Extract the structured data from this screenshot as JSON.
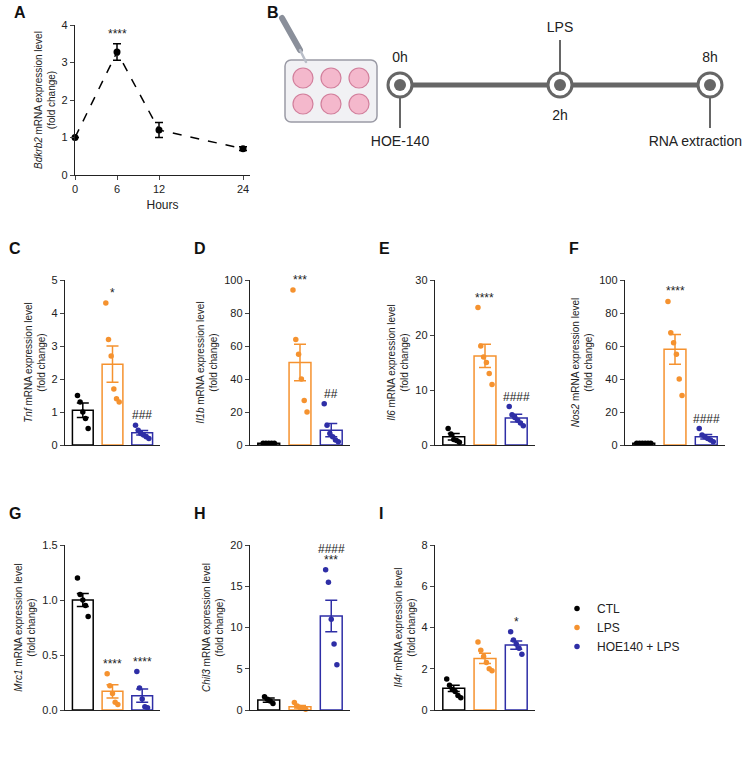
{
  "chart_data": [
    {
      "panel": "A",
      "type": "line",
      "xlabel": "Hours",
      "ylabel": "Bdkrb2 mRNA expression level (fold change)",
      "x": [
        0,
        6,
        12,
        24
      ],
      "values": [
        1,
        3.28,
        1.2,
        0.7
      ],
      "error": [
        0,
        0.22,
        0.2,
        0.05
      ],
      "color": "#000000",
      "line_style": "dash",
      "marker": "circle",
      "xlim": [
        0,
        25
      ],
      "xticks": [
        0,
        6,
        12,
        24
      ],
      "ylim": [
        0,
        4
      ],
      "yticks": [
        0,
        1,
        2,
        3,
        4
      ],
      "grid": false,
      "annotations": [
        {
          "x": 6,
          "text": "****"
        }
      ]
    },
    {
      "panel": "C",
      "type": "bar",
      "ylabel": "Tnf mRNA expression level (fold change)",
      "ylim": [
        0,
        5
      ],
      "yticks": [
        0,
        1,
        2,
        3,
        4,
        5
      ],
      "grid": false,
      "tick_labels": "y",
      "series": [
        {
          "name": "CTL",
          "color": "#000000",
          "values": [
            1.05
          ],
          "error": [
            0.22
          ],
          "points": [
            1.5,
            1.3,
            1.0,
            0.8,
            0.5
          ]
        },
        {
          "name": "LPS",
          "color": "#F5922F",
          "values": [
            2.45
          ],
          "error": [
            0.55
          ],
          "points": [
            4.3,
            3.2,
            2.7,
            1.7,
            1.4,
            1.3
          ]
        },
        {
          "name": "HOE140 + LPS",
          "color": "#2E2EA6",
          "values": [
            0.37
          ],
          "error": [
            0.07
          ],
          "points": [
            0.6,
            0.45,
            0.35,
            0.3,
            0.25,
            0.2
          ]
        }
      ],
      "annotations": [
        {
          "series": "LPS",
          "text": "*"
        },
        {
          "series": "HOE140 + LPS",
          "text": "###"
        }
      ]
    },
    {
      "panel": "D",
      "type": "bar",
      "ylabel": "Il1b mRNA expression level (fold change)",
      "ylim": [
        0,
        100
      ],
      "yticks": [
        0,
        20,
        40,
        60,
        80,
        100
      ],
      "grid": false,
      "tick_labels": "y",
      "series": [
        {
          "name": "CTL",
          "color": "#000000",
          "values": [
            1
          ],
          "error": [
            0.2
          ],
          "points": [
            1,
            1,
            1,
            1,
            1
          ]
        },
        {
          "name": "LPS",
          "color": "#F5922F",
          "values": [
            50
          ],
          "error": [
            11
          ],
          "points": [
            94,
            64,
            55,
            40,
            27,
            20
          ]
        },
        {
          "name": "HOE140 + LPS",
          "color": "#2E2EA6",
          "values": [
            9
          ],
          "error": [
            4
          ],
          "points": [
            25,
            12,
            7,
            5,
            3,
            2
          ]
        }
      ],
      "annotations": [
        {
          "series": "LPS",
          "text": "***"
        },
        {
          "series": "HOE140 + LPS",
          "text": "##"
        }
      ]
    },
    {
      "panel": "E",
      "type": "bar",
      "ylabel": "Il6 mRNA expression level (fold change)",
      "ylim": [
        0,
        30
      ],
      "yticks": [
        0,
        10,
        20,
        30
      ],
      "grid": false,
      "tick_labels": "y",
      "series": [
        {
          "name": "CTL",
          "color": "#000000",
          "values": [
            1.5
          ],
          "error": [
            0.6
          ],
          "points": [
            3,
            2,
            1,
            0.8,
            0.5
          ]
        },
        {
          "name": "LPS",
          "color": "#F5922F",
          "values": [
            16.2
          ],
          "error": [
            2.1
          ],
          "points": [
            25,
            18,
            16,
            15,
            13,
            11
          ]
        },
        {
          "name": "HOE140 + LPS",
          "color": "#2E2EA6",
          "values": [
            4.9
          ],
          "error": [
            0.7
          ],
          "points": [
            7,
            5.5,
            5,
            4.5,
            4,
            3.5
          ]
        }
      ],
      "annotations": [
        {
          "series": "LPS",
          "text": "****"
        },
        {
          "series": "HOE140 + LPS",
          "text": "####"
        }
      ]
    },
    {
      "panel": "F",
      "type": "bar",
      "ylabel": "Nos2 mRNA expression level (fold change)",
      "ylim": [
        0,
        100
      ],
      "yticks": [
        0,
        20,
        40,
        60,
        80,
        100
      ],
      "grid": false,
      "tick_labels": "y",
      "series": [
        {
          "name": "CTL",
          "color": "#000000",
          "values": [
            1
          ],
          "error": [
            0.2
          ],
          "points": [
            1,
            1,
            1,
            1,
            1,
            1
          ]
        },
        {
          "name": "LPS",
          "color": "#F5922F",
          "values": [
            58
          ],
          "error": [
            9
          ],
          "points": [
            87,
            68,
            62,
            55,
            40,
            30
          ]
        },
        {
          "name": "HOE140 + LPS",
          "color": "#2E2EA6",
          "values": [
            5
          ],
          "error": [
            1.3
          ],
          "points": [
            10,
            6,
            5,
            4,
            3,
            2
          ]
        }
      ],
      "annotations": [
        {
          "series": "LPS",
          "text": "****"
        },
        {
          "series": "HOE140 + LPS",
          "text": "####"
        }
      ]
    },
    {
      "panel": "G",
      "type": "bar",
      "ylabel": "Mrc1 mRNA expression level (fold change)",
      "ylim": [
        0,
        1.5
      ],
      "yticks": [
        {
          "value": 0,
          "label": "0.0"
        },
        0.5,
        {
          "value": 1,
          "label": "1.0"
        },
        1.5
      ],
      "grid": false,
      "tick_labels": "y",
      "series": [
        {
          "name": "CTL",
          "color": "#000000",
          "values": [
            1.0
          ],
          "error": [
            0.06
          ],
          "points": [
            1.2,
            1.05,
            1.0,
            0.95,
            0.85
          ]
        },
        {
          "name": "LPS",
          "color": "#F5922F",
          "values": [
            0.17
          ],
          "error": [
            0.06
          ],
          "points": [
            0.33,
            0.22,
            0.15,
            0.07,
            0.05
          ]
        },
        {
          "name": "HOE140 + LPS",
          "color": "#2E2EA6",
          "values": [
            0.13
          ],
          "error": [
            0.06
          ],
          "points": [
            0.35,
            0.2,
            0.1,
            0.03,
            0.02
          ]
        }
      ],
      "annotations": [
        {
          "series": "LPS",
          "text": "****"
        },
        {
          "series": "HOE140 + LPS",
          "text": "****"
        }
      ]
    },
    {
      "panel": "H",
      "type": "bar",
      "ylabel": "Chil3 mRNA expression level (fold change)",
      "ylim": [
        0,
        20
      ],
      "yticks": [
        0,
        5,
        10,
        15,
        20
      ],
      "grid": false,
      "tick_labels": "y",
      "series": [
        {
          "name": "CTL",
          "color": "#000000",
          "values": [
            1.2
          ],
          "error": [
            0.25
          ],
          "points": [
            1.6,
            1.3,
            1.1,
            0.8
          ]
        },
        {
          "name": "LPS",
          "color": "#F5922F",
          "values": [
            0.4
          ],
          "error": [
            0.15
          ],
          "points": [
            0.9,
            0.5,
            0.3,
            0.2,
            0.1
          ]
        },
        {
          "name": "HOE140 + LPS",
          "color": "#2E2EA6",
          "values": [
            11.4
          ],
          "error": [
            1.9
          ],
          "points": [
            17,
            15.5,
            11,
            8,
            5.5
          ]
        }
      ],
      "annotations": [
        {
          "series": "HOE140 + LPS",
          "text": "####"
        },
        {
          "series": "HOE140 + LPS",
          "text": "***"
        }
      ]
    },
    {
      "panel": "I",
      "type": "bar",
      "ylabel": "Il4r mRNA expression level (fold change)",
      "ylim": [
        0,
        8
      ],
      "yticks": [
        0,
        2,
        4,
        6,
        8
      ],
      "grid": false,
      "tick_labels": "y",
      "legend": "right",
      "series": [
        {
          "name": "CTL",
          "color": "#000000",
          "values": [
            1.05
          ],
          "error": [
            0.15
          ],
          "points": [
            1.5,
            1.2,
            1.0,
            0.9,
            0.7,
            0.6
          ]
        },
        {
          "name": "LPS",
          "color": "#F5922F",
          "values": [
            2.5
          ],
          "error": [
            0.25
          ],
          "points": [
            3.3,
            2.9,
            2.6,
            2.3,
            2.0,
            1.9
          ]
        },
        {
          "name": "HOE140 + LPS",
          "color": "#2E2EA6",
          "values": [
            3.15
          ],
          "error": [
            0.2
          ],
          "points": [
            3.8,
            3.4,
            3.2,
            3.0,
            2.7
          ]
        }
      ],
      "annotations": [
        {
          "series": "HOE140 + LPS",
          "text": "*"
        }
      ]
    }
  ],
  "diagram": {
    "panel": "B",
    "steps": [
      {
        "time": "0h",
        "label": "HOE-140"
      },
      {
        "time": "2h",
        "label": "LPS"
      },
      {
        "time": "8h",
        "label": "RNA extraction"
      }
    ]
  }
}
